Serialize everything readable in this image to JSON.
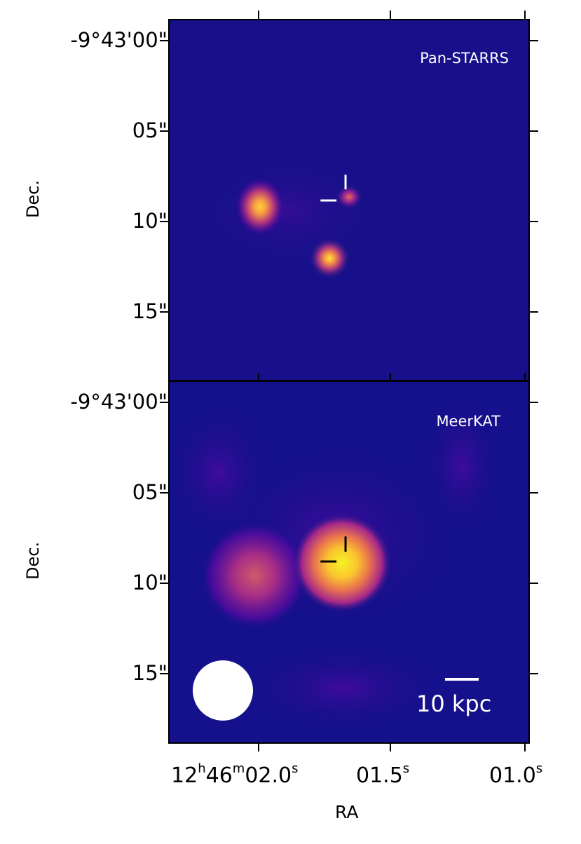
{
  "panels": {
    "top": {
      "label": "Pan-STARRS"
    },
    "bottom": {
      "label": "MeerKAT"
    }
  },
  "axes": {
    "y_label": "Dec.",
    "y_ticks": [
      "-9°43'00\"",
      "05\"",
      "10\"",
      "15\""
    ],
    "x_label": "RA",
    "x_ticks": [
      {
        "main": "12",
        "s1": "h",
        "mid": "46",
        "s2": "m",
        "end": "02.0",
        "s3": "s"
      },
      {
        "main": "01.5",
        "s3": "s"
      },
      {
        "main": "01.0",
        "s3": "s"
      }
    ]
  },
  "scale_bar": {
    "label": "10 kpc"
  },
  "colors": {
    "background": "#17108a",
    "marker_top": "#ffffff",
    "marker_bottom": "#000000",
    "colormap": "plasma"
  }
}
